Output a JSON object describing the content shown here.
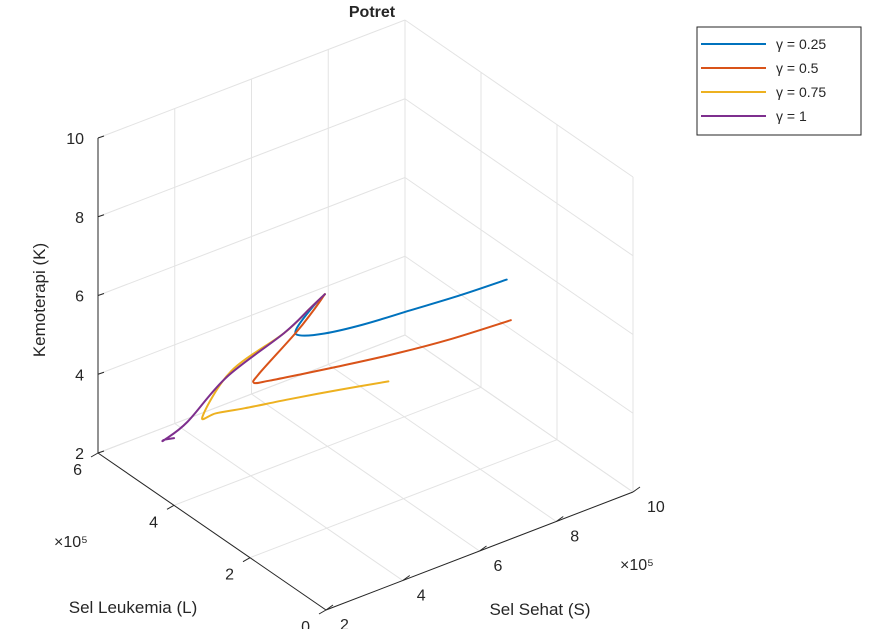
{
  "chart_data": {
    "type": "line3d",
    "title": "Potret",
    "xlabel": "Sel Sehat (S)",
    "ylabel": "Sel Leukemia (L)",
    "zlabel": "Kemoterapi (K)",
    "x_exponent": "×10⁵",
    "y_exponent": "×10⁵",
    "xlim": [
      2,
      10
    ],
    "ylim": [
      0,
      6
    ],
    "zlim": [
      2,
      10
    ],
    "x_ticks": [
      "2",
      "4",
      "6",
      "8",
      "10"
    ],
    "y_ticks": [
      "0",
      "2",
      "4",
      "6"
    ],
    "z_ticks": [
      "2",
      "4",
      "6",
      "8",
      "10"
    ],
    "grid": true,
    "legend_position": "top-right",
    "series": [
      {
        "name": "γ  =  0.25",
        "color": "#0072BD",
        "x": [
          2.0,
          2.03,
          2.02,
          2.3,
          3.0,
          4.0,
          5.2,
          6.4,
          7.5
        ],
        "y": [
          0.03,
          0.4,
          0.8,
          1.0,
          1.05,
          1.05,
          1.0,
          0.9,
          0.8
        ],
        "z": [
          10.0,
          9.4,
          8.6,
          8.2,
          7.95,
          7.8,
          7.75,
          7.75,
          7.8
        ]
      },
      {
        "name": "γ  =  0.5",
        "color": "#D95319",
        "x": [
          2.0,
          2.05,
          2.1,
          2.05,
          2.2,
          2.7,
          3.5,
          4.6,
          5.8,
          7.0,
          8.4
        ],
        "y": [
          0.03,
          0.4,
          0.9,
          1.8,
          2.1,
          2.2,
          2.15,
          2.05,
          1.9,
          1.75,
          1.6
        ],
        "z": [
          10.0,
          9.3,
          8.4,
          6.8,
          6.3,
          6.1,
          6.0,
          5.9,
          5.85,
          5.85,
          5.9
        ]
      },
      {
        "name": "γ  =  0.75",
        "color": "#EDB120",
        "x": [
          2.0,
          2.08,
          2.1,
          2.0,
          2.05,
          2.5,
          3.2,
          4.2,
          5.3,
          6.3
        ],
        "y": [
          0.03,
          0.5,
          1.2,
          2.5,
          3.3,
          3.4,
          3.35,
          3.2,
          2.95,
          2.7
        ],
        "z": [
          10.0,
          9.3,
          8.2,
          6.4,
          4.7,
          4.55,
          4.45,
          4.4,
          4.4,
          4.4
        ]
      },
      {
        "name": "γ  =  1",
        "color": "#7E2F8E",
        "x": [
          2.0,
          2.08,
          2.1,
          2.0,
          1.95,
          1.95,
          2.05,
          2.2
        ],
        "y": [
          0.03,
          0.5,
          1.2,
          2.6,
          3.6,
          4.2,
          4.3,
          4.2
        ],
        "z": [
          10.0,
          9.3,
          8.2,
          6.2,
          4.4,
          3.55,
          3.45,
          3.5
        ]
      }
    ]
  }
}
